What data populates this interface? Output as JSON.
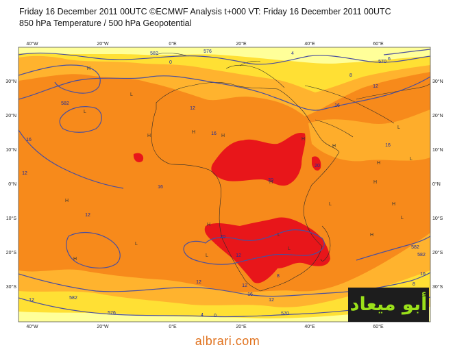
{
  "header": {
    "title": "Friday 16 December 2011 00UTC ©ECMWF Analysis t+000 VT: Friday 16 December 2011 00UTC",
    "subtitle": "850 hPa Temperature / 500 hPa Geopotential"
  },
  "map": {
    "lon_labels": [
      "40°W",
      "20°W",
      "0°E",
      "20°E",
      "40°E",
      "60°E"
    ],
    "lat_labels": [
      "30°N",
      "20°N",
      "10°N",
      "0°N",
      "10°S",
      "20°S",
      "30°S"
    ],
    "contour_labels": [
      "582",
      "576",
      "0",
      "4",
      "8",
      "12",
      "16",
      "20",
      "570",
      "16",
      "12",
      "582",
      "12",
      "16",
      "16",
      "16",
      "20",
      "12",
      "20",
      "12",
      "582",
      "12",
      "16",
      "12",
      "582",
      "8",
      "4",
      "0",
      "576",
      "570",
      "582",
      "16",
      "12",
      "8",
      "6",
      "12",
      "8",
      "4"
    ],
    "temperature_colors": {
      "light_yellow": "#ffff99",
      "yellow": "#ffe034",
      "light_orange": "#ffb32e",
      "orange": "#f78a1b",
      "red": "#e8161a"
    },
    "contour_color": "#4a4f9e"
  },
  "logo": {
    "text": "أبو ميعاد"
  },
  "footer": {
    "site": "albrari.com"
  }
}
